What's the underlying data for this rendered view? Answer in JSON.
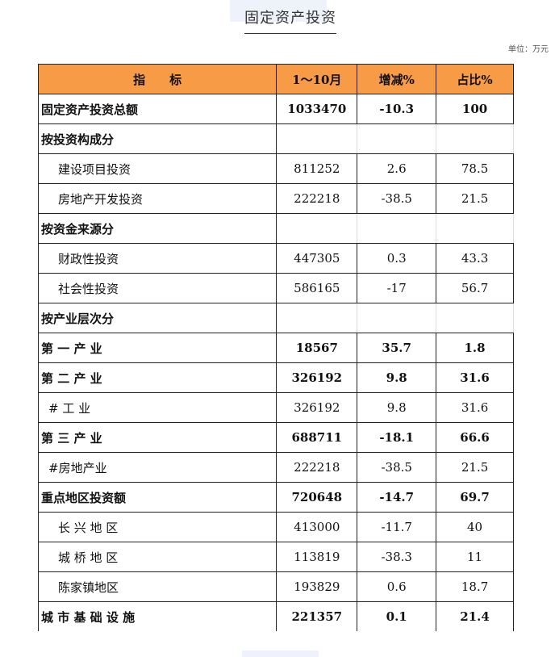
{
  "title": "固定资产投资",
  "unit": "单位：万元",
  "headers": [
    "指　　标",
    "1～10月",
    "增减%",
    "占比%"
  ],
  "rows": [
    {
      "label": "固定资产投资总额",
      "value": "1033470",
      "change": "-10.3",
      "share": "100",
      "style": "b"
    },
    {
      "label": "按投资构成分",
      "value": "",
      "change": "",
      "share": "",
      "style": "b sec"
    },
    {
      "label": "建设项目投资",
      "value": "811252",
      "change": "2.6",
      "share": "78.5",
      "style": "i"
    },
    {
      "label": "房地产开发投资",
      "value": "222218",
      "change": "-38.5",
      "share": "21.5",
      "style": "i"
    },
    {
      "label": "按资金来源分",
      "value": "",
      "change": "",
      "share": "",
      "style": "b sec"
    },
    {
      "label": "财政性投资",
      "value": "447305",
      "change": "0.3",
      "share": "43.3",
      "style": "i"
    },
    {
      "label": "社会性投资",
      "value": "586165",
      "change": "-17",
      "share": "56.7",
      "style": "i"
    },
    {
      "label": "按产业层次分",
      "value": "",
      "change": "",
      "share": "",
      "style": "b sec"
    },
    {
      "label": "第 一 产 业",
      "value": "18567",
      "change": "35.7",
      "share": "1.8",
      "style": "b"
    },
    {
      "label": "第 二 产 业",
      "value": "326192",
      "change": "9.8",
      "share": "31.6",
      "style": "b"
    },
    {
      "label": "# 工 业",
      "value": "326192",
      "change": "9.8",
      "share": "31.6",
      "style": "s"
    },
    {
      "label": "第 三 产 业",
      "value": "688711",
      "change": "-18.1",
      "share": "66.6",
      "style": "b"
    },
    {
      "label": "#房地产业",
      "value": "222218",
      "change": "-38.5",
      "share": "21.5",
      "style": "s"
    },
    {
      "label": "重点地区投资额",
      "value": "720648",
      "change": "-14.7",
      "share": "69.7",
      "style": "b"
    },
    {
      "label": "长 兴 地 区",
      "value": "413000",
      "change": "-11.7",
      "share": "40",
      "style": "i"
    },
    {
      "label": "城 桥 地 区",
      "value": "113819",
      "change": "-38.3",
      "share": "11",
      "style": "i"
    },
    {
      "label": "陈家镇地区",
      "value": "193829",
      "change": "0.6",
      "share": "18.7",
      "style": "i"
    },
    {
      "label": "城 市 基 础 设 施",
      "value": "221357",
      "change": "0.1",
      "share": "21.4",
      "style": "b last"
    }
  ],
  "colors": {
    "header_bg": "#f79b46"
  }
}
